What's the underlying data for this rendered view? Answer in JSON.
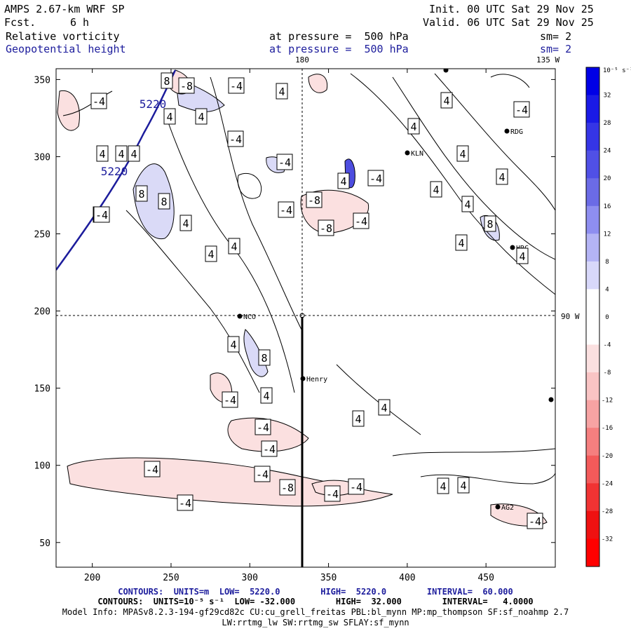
{
  "header": {
    "model": "AMPS 2.67-km WRF SP",
    "fcst_label": "Fcst.",
    "fcst_value": "6 h",
    "init": "Init. 00 UTC Sat 29 Nov 25",
    "valid": "Valid. 06 UTC Sat 29 Nov 25",
    "field1": "Relative vorticity",
    "field1_level": "at pressure =  500 hPa",
    "field1_sm": "sm= 2",
    "field2": "Geopotential height",
    "field2_level": "at pressure =  500 hPa",
    "field2_sm": "sm= 2"
  },
  "map_labels": {
    "lon_180": "180",
    "lon_135w": "135 W",
    "lat_90w": "90 W",
    "stations": [
      {
        "name": "NCO",
        "x": 342,
        "y": 451
      },
      {
        "name": "Henry",
        "x": 432,
        "y": 540
      },
      {
        "name": "KLN",
        "x": 581,
        "y": 218
      },
      {
        "name": "RDG",
        "x": 723,
        "y": 187
      },
      {
        "name": "HRC",
        "x": 731,
        "y": 353
      },
      {
        "name": "AG2",
        "x": 710,
        "y": 723
      }
    ]
  },
  "contour_labels": {
    "height": [
      "5220",
      "5220"
    ],
    "vorticity": [
      "-4",
      "8",
      "-8",
      "-4",
      "4",
      "4",
      "-4",
      "4",
      "4",
      "4",
      "4",
      "4",
      "4",
      "-4",
      "4",
      "4",
      "-4",
      "4",
      "-4",
      "4",
      "8",
      "8",
      "4",
      "-4",
      "-8",
      "-4",
      "-8",
      "-4",
      "4",
      "4",
      "4",
      "8",
      "4",
      "4",
      "4",
      "8",
      "4",
      "-4",
      "4",
      "4",
      "-4",
      "-4",
      "-4",
      "-4",
      "-4",
      "-8",
      "-4",
      "-4",
      "4",
      "4",
      "-4",
      "-4"
    ]
  },
  "colorbar": {
    "unit": "10⁻⁵ s⁻¹",
    "ticks": [
      "32",
      "28",
      "24",
      "20",
      "16",
      "12",
      "8",
      "4",
      "0",
      "-4",
      "-8",
      "-12",
      "-16",
      "-20",
      "-24",
      "-28",
      "-32"
    ],
    "colors": [
      "#0000e6",
      "#1a1ae6",
      "#3535e6",
      "#5050e6",
      "#6b6be6",
      "#8e8ef0",
      "#b4b4f5",
      "#d8d8fa",
      "#ffffff",
      "#ffffff",
      "#fbe0e0",
      "#f9c4c4",
      "#f7a3a3",
      "#f57f7f",
      "#f35a5a",
      "#f13333",
      "#ef1111",
      "#ff0000"
    ]
  },
  "chart_data": {
    "type": "heatmap",
    "title": "AMPS 2.67-km WRF SP 500 hPa relative vorticity and geopotential height",
    "x_ticks": [
      200,
      250,
      300,
      350,
      400,
      450
    ],
    "y_ticks": [
      350,
      300,
      250,
      200,
      150,
      100,
      50
    ],
    "xlim": [
      177,
      494
    ],
    "ylim": [
      34,
      357
    ],
    "series": [
      {
        "name": "Relative vorticity (10^-5 s^-1)",
        "low": -32.0,
        "high": 32.0,
        "interval": 4.0
      },
      {
        "name": "Geopotential height (m)",
        "low": 5220.0,
        "high": 5220.0,
        "interval": 60.0
      }
    ]
  },
  "footer": {
    "contours1": "CONTOURS:  UNITS=m  LOW=  5220.0        HIGH=  5220.0        INTERVAL=  60.000",
    "contours2": "CONTOURS:  UNITS=10⁻⁵ s⁻¹  LOW= -32.000        HIGH=  32.000        INTERVAL=   4.0000",
    "model_info": "Model Info: MPASv8.2.3-194-gf29cd82c CU:cu_grell_freitas PBL:bl_mynn MP:mp_thompson SF:sf_noahmp 2.7",
    "model_info2": "LW:rrtmg_lw SW:rrtmg_sw SFLAY:sf_mynn"
  }
}
